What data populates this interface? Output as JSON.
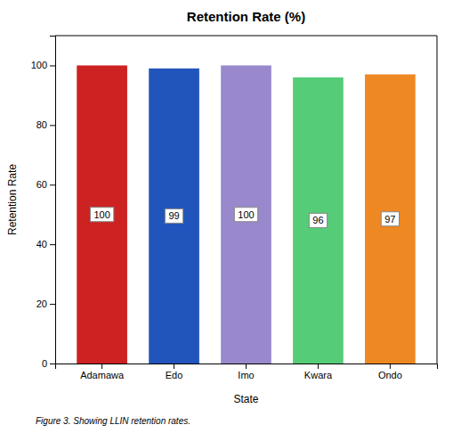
{
  "chart_data": {
    "type": "bar",
    "title": "Retention Rate (%)",
    "categories": [
      "Adamawa",
      "Edo",
      "Imo",
      "Kwara",
      "Ondo"
    ],
    "values": [
      100,
      99,
      100,
      96,
      97
    ],
    "colors": [
      "#cc2222",
      "#2255bb",
      "#9988cc",
      "#55cc77",
      "#ee8822"
    ],
    "ylabel": "Retention Rate",
    "xlabel": "State",
    "ylim": [
      0,
      110
    ],
    "yticks": [
      0,
      20,
      40,
      60,
      80,
      100
    ],
    "grid": false,
    "data_labels": true,
    "caption": "Figure 3. Showing LLIN retention rates."
  }
}
